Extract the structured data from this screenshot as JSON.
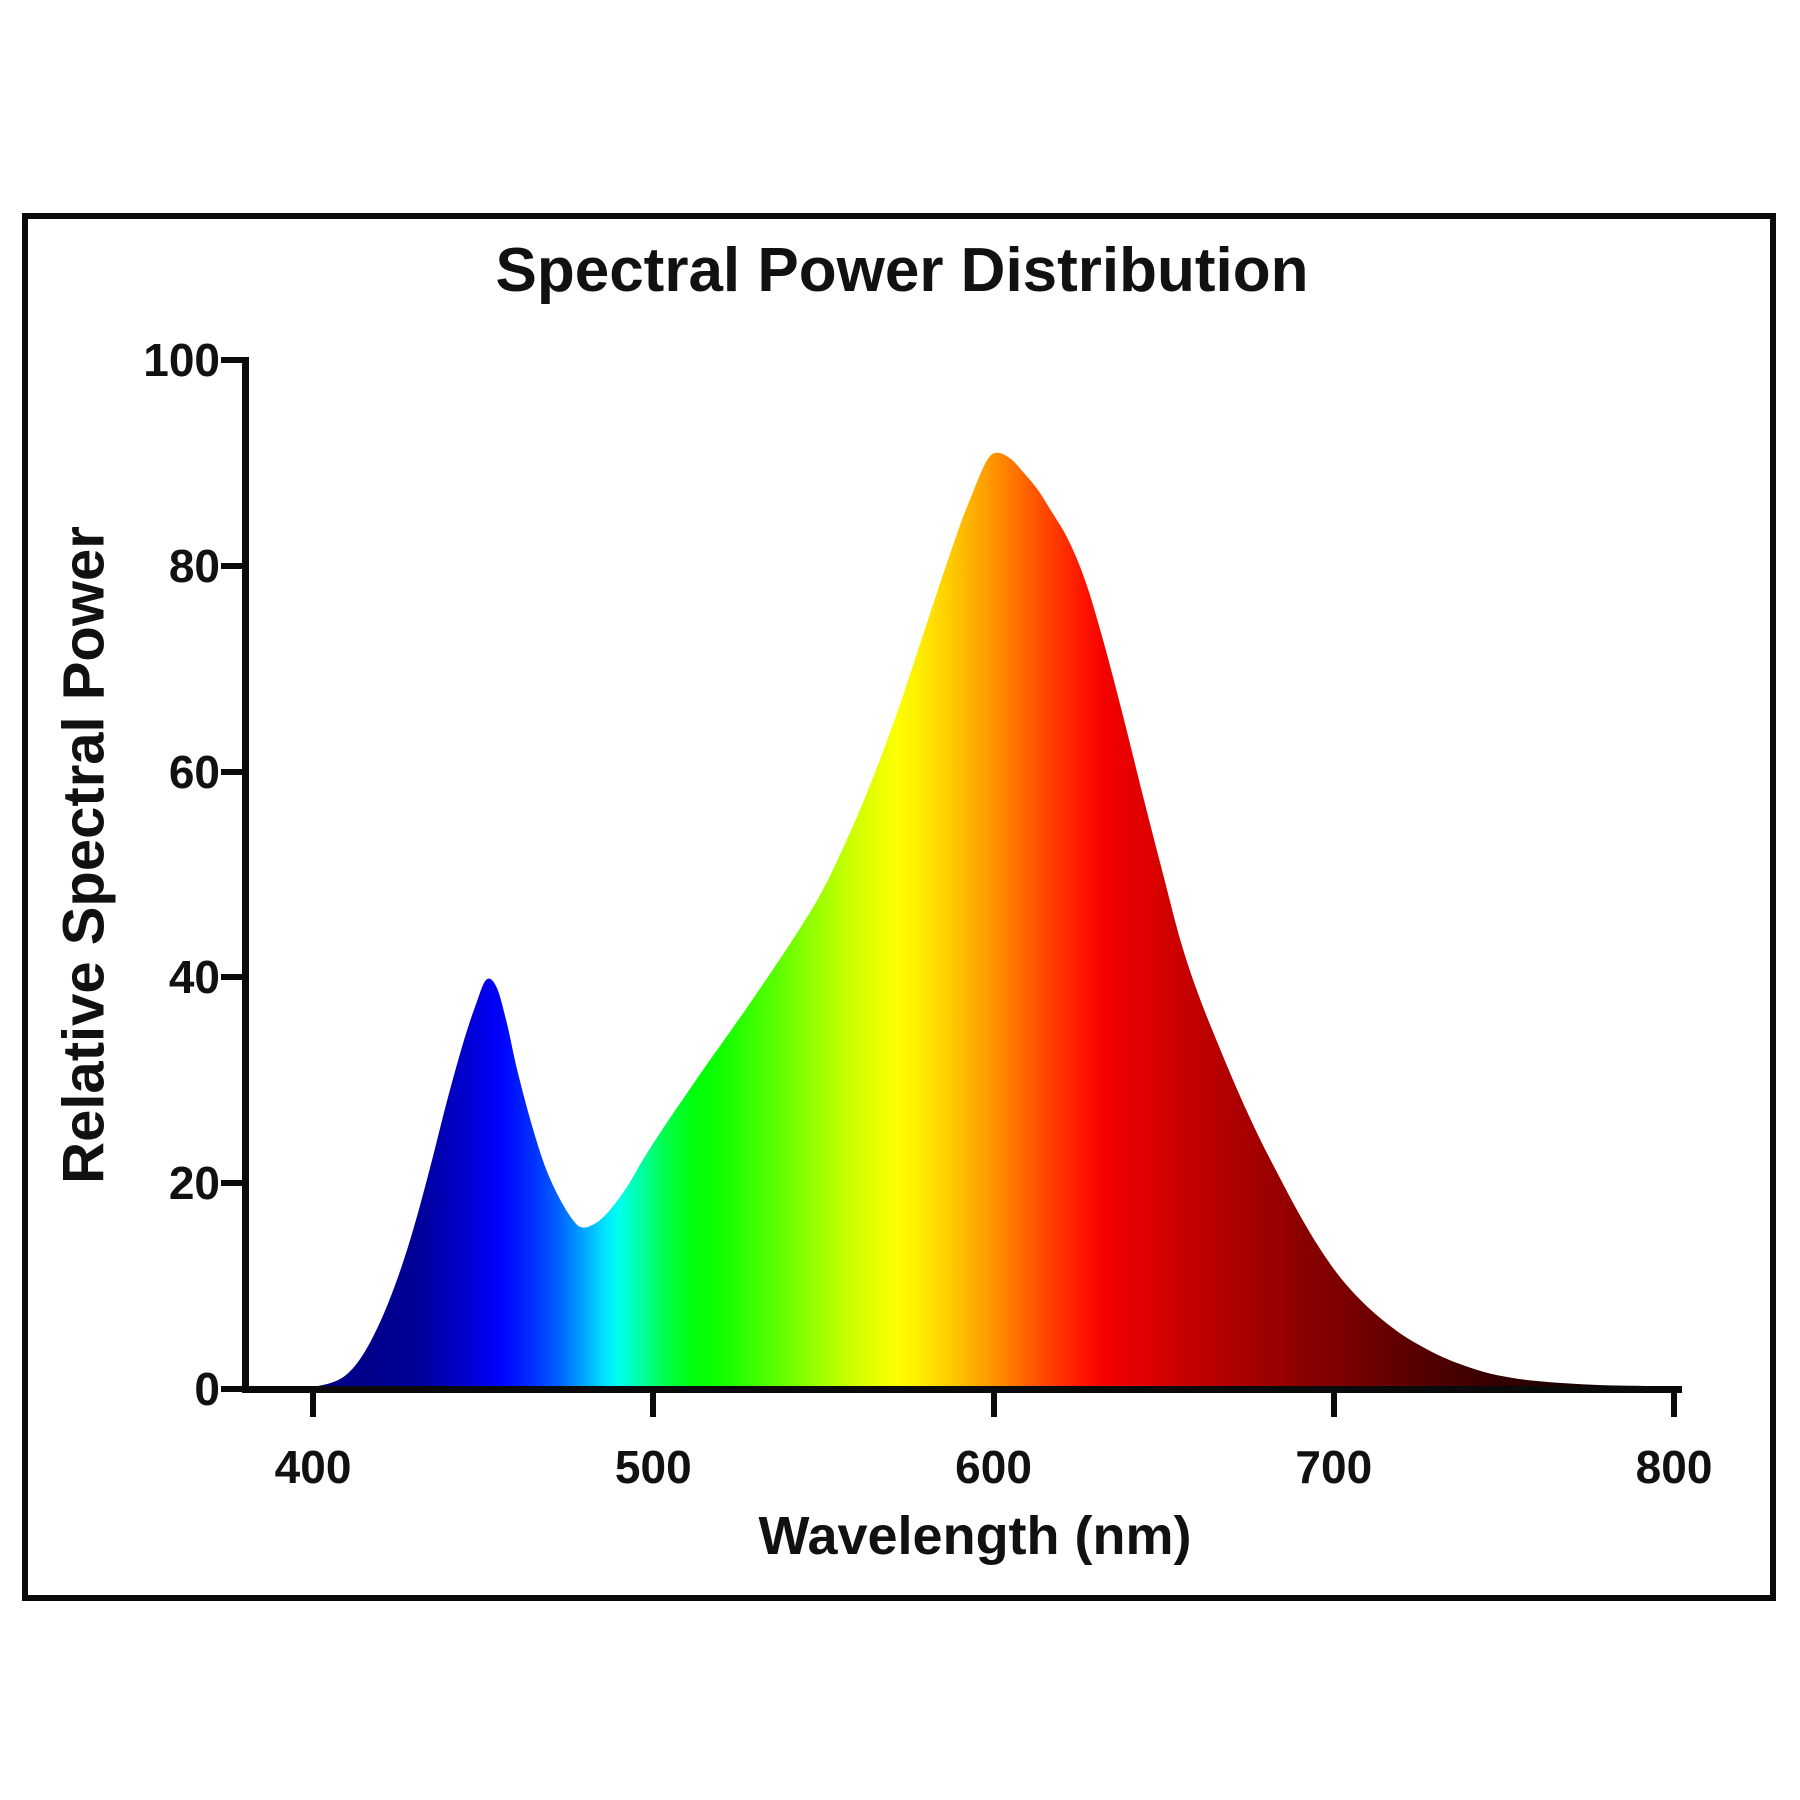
{
  "figure": {
    "title": "Spectral Power Distribution",
    "x_axis": {
      "label": "Wavelength (nm)"
    },
    "y_axis": {
      "label": "Relative Spectral Power"
    }
  },
  "colors": {
    "background": "#FFFFFF",
    "border": "#0A0A0A",
    "axis": "#0A0A0A",
    "text": "#111111"
  },
  "chart_data": {
    "type": "area",
    "title": "Spectral Power Distribution",
    "xlabel": "Wavelength (nm)",
    "ylabel": "Relative Spectral Power",
    "xlim": [
      380,
      800
    ],
    "ylim": [
      0,
      100
    ],
    "x_ticks": [
      400,
      500,
      600,
      700,
      800
    ],
    "y_ticks": [
      0,
      20,
      40,
      60,
      80,
      100
    ],
    "grid": false,
    "legend": "none",
    "annotations": {
      "blue_peak": {
        "wavelength_nm": 452,
        "value": 40
      },
      "dip": {
        "wavelength_nm": 479,
        "value": 15.7
      },
      "main_peak": {
        "wavelength_nm": 600,
        "value": 91
      }
    },
    "series": [
      {
        "name": "Relative Spectral Power",
        "points": [
          [
            380,
            0
          ],
          [
            395,
            0.1
          ],
          [
            403,
            0.4
          ],
          [
            409,
            1.2
          ],
          [
            414,
            3
          ],
          [
            419,
            6
          ],
          [
            424,
            10
          ],
          [
            429,
            15
          ],
          [
            434,
            21
          ],
          [
            439,
            27.5
          ],
          [
            444,
            33.5
          ],
          [
            448,
            37.5
          ],
          [
            451,
            39.8
          ],
          [
            454,
            39
          ],
          [
            457,
            35.5
          ],
          [
            460,
            31
          ],
          [
            464,
            26
          ],
          [
            468,
            21.8
          ],
          [
            472,
            18.8
          ],
          [
            476,
            16.6
          ],
          [
            479,
            15.7
          ],
          [
            483,
            16.1
          ],
          [
            487,
            17.3
          ],
          [
            492,
            19.5
          ],
          [
            497,
            22.3
          ],
          [
            503,
            25.4
          ],
          [
            509,
            28.3
          ],
          [
            515,
            31.2
          ],
          [
            521,
            34
          ],
          [
            528,
            37.3
          ],
          [
            535,
            40.7
          ],
          [
            542,
            44.2
          ],
          [
            549,
            48
          ],
          [
            555,
            52
          ],
          [
            561,
            56.5
          ],
          [
            567,
            61.5
          ],
          [
            573,
            67
          ],
          [
            579,
            73
          ],
          [
            585,
            79
          ],
          [
            590,
            83.8
          ],
          [
            594,
            87.2
          ],
          [
            598,
            90.2
          ],
          [
            601,
            91
          ],
          [
            605,
            90.4
          ],
          [
            609,
            89
          ],
          [
            613,
            87.4
          ],
          [
            617,
            85.3
          ],
          [
            622,
            82.5
          ],
          [
            627,
            78.5
          ],
          [
            632,
            73
          ],
          [
            638,
            65.5
          ],
          [
            644,
            57.5
          ],
          [
            650,
            49.8
          ],
          [
            655,
            43.5
          ],
          [
            660,
            38.5
          ],
          [
            666,
            33.5
          ],
          [
            672,
            28.8
          ],
          [
            678,
            24.5
          ],
          [
            684,
            20.6
          ],
          [
            690,
            16.9
          ],
          [
            696,
            13.6
          ],
          [
            702,
            10.8
          ],
          [
            708,
            8.6
          ],
          [
            714,
            6.8
          ],
          [
            720,
            5.3
          ],
          [
            726,
            4.1
          ],
          [
            732,
            3.1
          ],
          [
            739,
            2.2
          ],
          [
            746,
            1.5
          ],
          [
            754,
            1
          ],
          [
            762,
            0.7
          ],
          [
            771,
            0.5
          ],
          [
            781,
            0.35
          ],
          [
            790,
            0.3
          ],
          [
            800,
            0.25
          ]
        ]
      }
    ],
    "spectral_gradient_stops": [
      [
        400,
        "#000080"
      ],
      [
        430,
        "#000095"
      ],
      [
        445,
        "#0000CF"
      ],
      [
        455,
        "#0000FF"
      ],
      [
        465,
        "#0032FF"
      ],
      [
        473,
        "#0069FF"
      ],
      [
        480,
        "#00AAFF"
      ],
      [
        486,
        "#00E6FF"
      ],
      [
        490,
        "#00FFEE"
      ],
      [
        497,
        "#00FF99"
      ],
      [
        504,
        "#00FF44"
      ],
      [
        512,
        "#00FF0A"
      ],
      [
        520,
        "#11FF00"
      ],
      [
        535,
        "#55FF00"
      ],
      [
        548,
        "#99FF00"
      ],
      [
        560,
        "#D4FF00"
      ],
      [
        571,
        "#FBFF00"
      ],
      [
        578,
        "#FFEE00"
      ],
      [
        586,
        "#FFD000"
      ],
      [
        594,
        "#FFAE00"
      ],
      [
        602,
        "#FF8A00"
      ],
      [
        610,
        "#FF6000"
      ],
      [
        618,
        "#FF3A00"
      ],
      [
        626,
        "#FF1500"
      ],
      [
        633,
        "#F40000"
      ],
      [
        645,
        "#DE0000"
      ],
      [
        660,
        "#C00000"
      ],
      [
        675,
        "#A80000"
      ],
      [
        690,
        "#8C0000"
      ],
      [
        705,
        "#780000"
      ],
      [
        720,
        "#5E0000"
      ],
      [
        736,
        "#450000"
      ],
      [
        752,
        "#300000"
      ],
      [
        768,
        "#1F0000"
      ],
      [
        784,
        "#120000"
      ],
      [
        800,
        "#0A0000"
      ]
    ]
  }
}
